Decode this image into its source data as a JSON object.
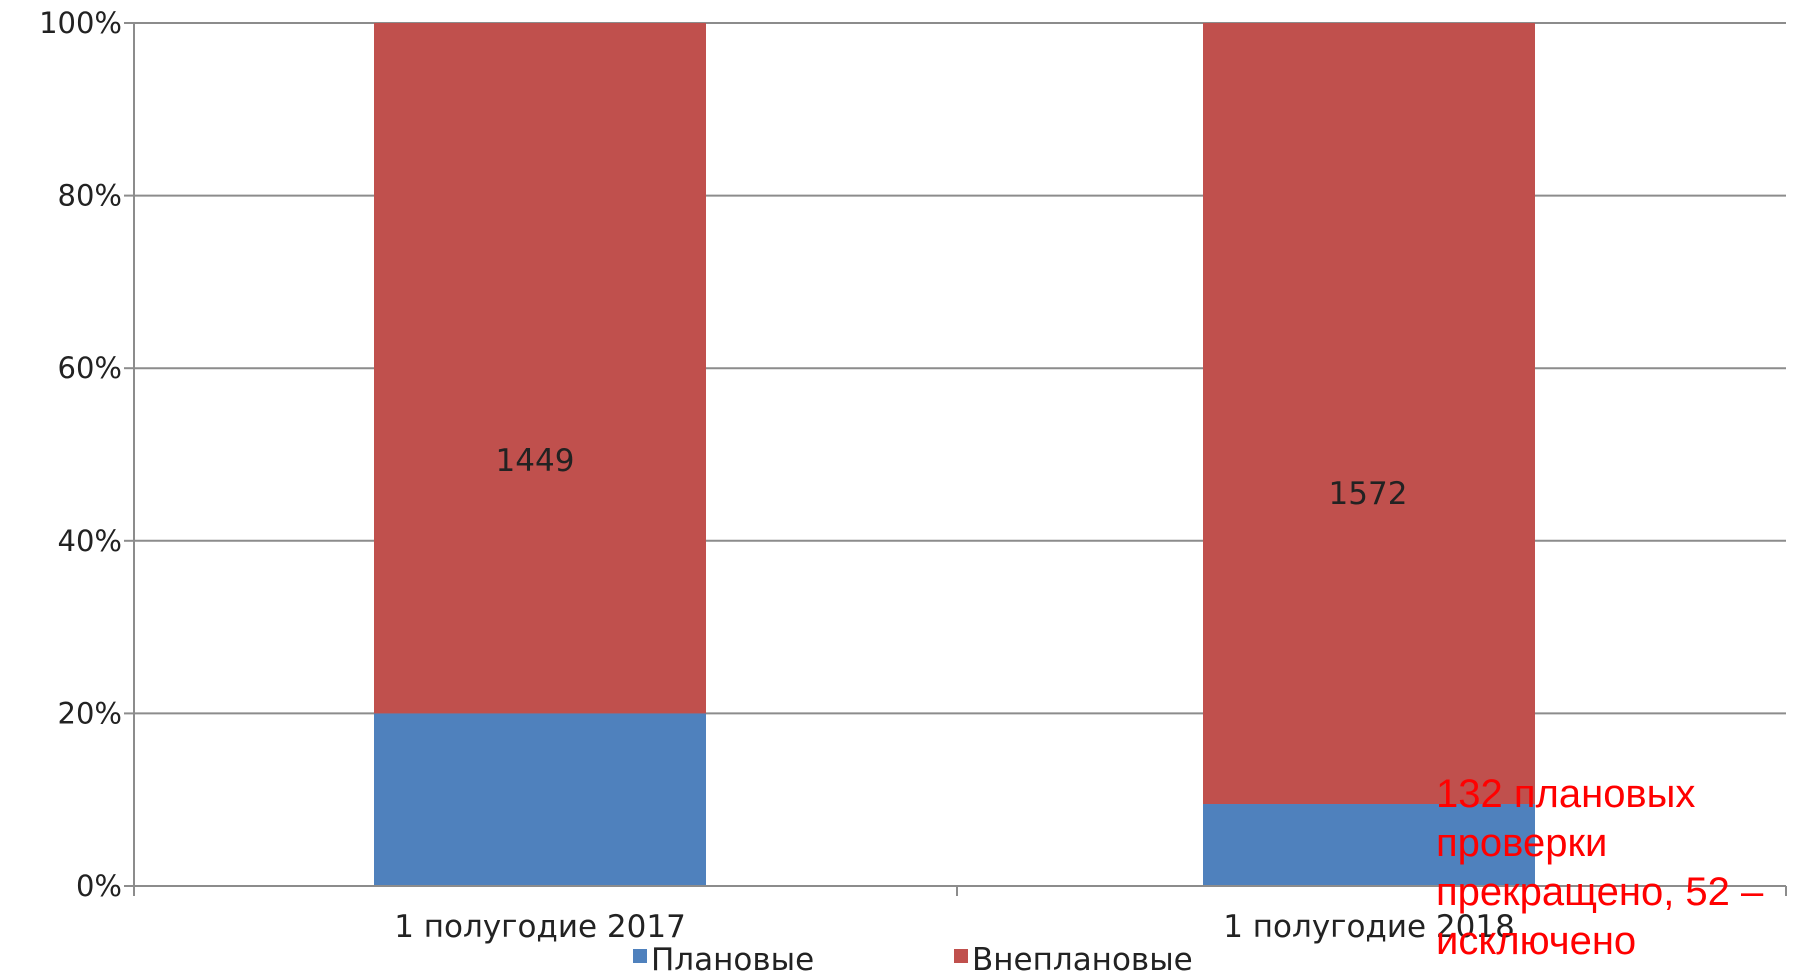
{
  "chart_data": {
    "type": "bar",
    "stacked": "percent",
    "categories": [
      "1 полугодие 2017",
      "1 полугодие 2018"
    ],
    "series": [
      {
        "name": "Плановые",
        "color": "#4f81bd",
        "values_percent": [
          20,
          9.5
        ]
      },
      {
        "name": "Внеплановые",
        "color": "#c0504d",
        "values_percent": [
          80,
          90.5
        ],
        "data_labels": [
          "1449",
          "1572"
        ]
      }
    ],
    "y_ticks": [
      "0%",
      "20%",
      "40%",
      "60%",
      "80%",
      "100%"
    ],
    "ylim": [
      0,
      100
    ],
    "grid": true,
    "legend_position": "bottom",
    "annotation": "132 плановых проверки прекращено, 52 – исключено"
  }
}
